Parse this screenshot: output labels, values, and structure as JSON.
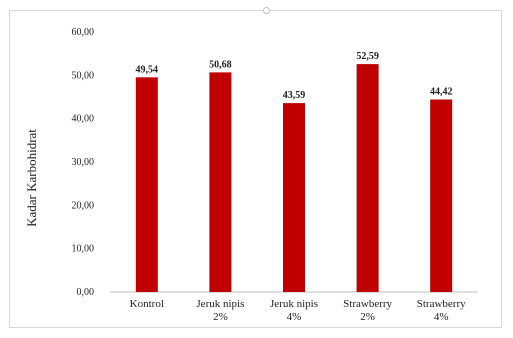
{
  "chart_data": {
    "type": "bar",
    "categories": [
      [
        "Kontrol"
      ],
      [
        "Jeruk nipis",
        "2%"
      ],
      [
        "Jeruk nipis",
        "4%"
      ],
      [
        "Strawberry",
        "2%"
      ],
      [
        "Strawberry",
        "4%"
      ]
    ],
    "values": [
      49.54,
      50.68,
      43.59,
      52.59,
      44.42
    ],
    "value_labels": [
      "49,54",
      "50,68",
      "43,59",
      "52,59",
      "44,42"
    ],
    "ylabel": "Kadar Karbohidrat",
    "xlabel": "",
    "title": "",
    "ylim": [
      0,
      60
    ],
    "yticks": [
      "0,00",
      "10,00",
      "20,00",
      "30,00",
      "40,00",
      "50,00",
      "60,00"
    ],
    "bar_color": "#c00000",
    "grid": false,
    "legend": "none"
  }
}
